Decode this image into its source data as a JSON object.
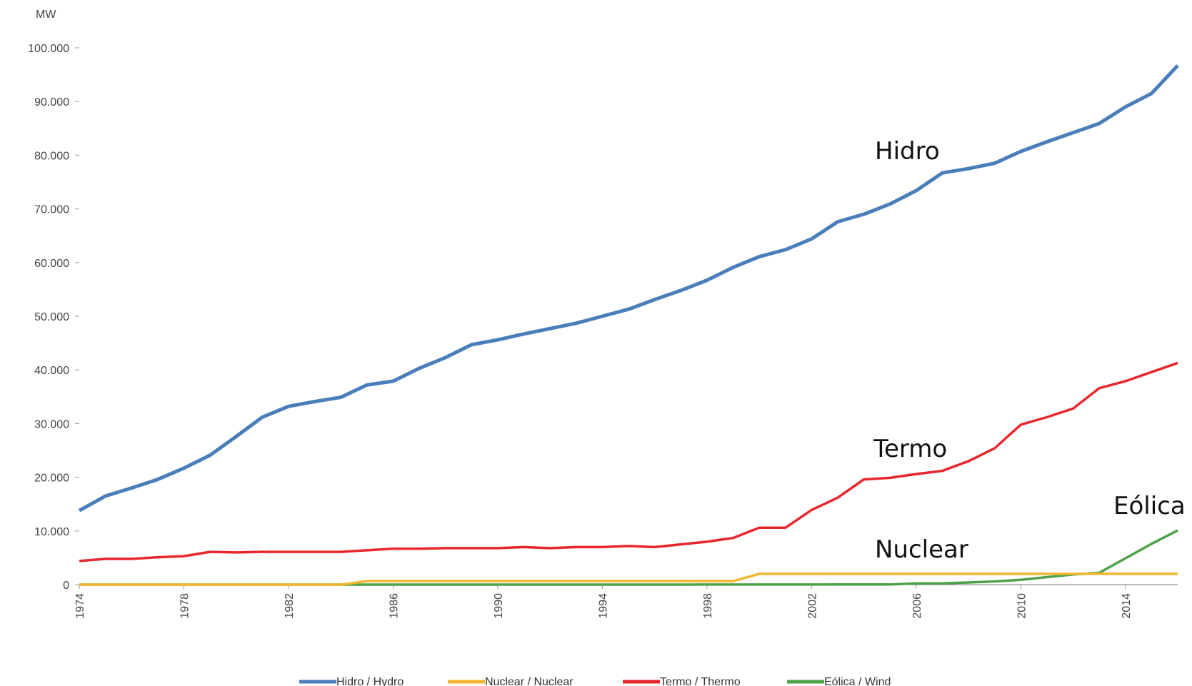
{
  "chart_data": {
    "type": "line",
    "y_label": "MW",
    "x": [
      1974,
      1975,
      1976,
      1977,
      1978,
      1979,
      1980,
      1981,
      1982,
      1983,
      1984,
      1985,
      1986,
      1987,
      1988,
      1989,
      1990,
      1991,
      1992,
      1993,
      1994,
      1995,
      1996,
      1997,
      1998,
      1999,
      2000,
      2001,
      2002,
      2003,
      2004,
      2005,
      2006,
      2007,
      2008,
      2009,
      2010,
      2011,
      2012,
      2013,
      2014,
      2015,
      2016
    ],
    "xlim": [
      1974,
      2016
    ],
    "xticks": [
      1974,
      1978,
      1982,
      1986,
      1990,
      1994,
      1998,
      2002,
      2006,
      2010,
      2014
    ],
    "ylim": [
      0,
      100000
    ],
    "yticks": [
      0,
      {
        "value": 10000,
        "label": "10.000"
      },
      {
        "value": 20000,
        "label": "20.000"
      },
      {
        "value": 30000,
        "label": "30.000"
      },
      {
        "value": 40000,
        "label": "40.000"
      },
      {
        "value": 50000,
        "label": "50.000"
      },
      {
        "value": 60000,
        "label": "60.000"
      },
      {
        "value": 70000,
        "label": "70.000"
      },
      {
        "value": 80000,
        "label": "80.000"
      },
      {
        "value": 90000,
        "label": "90.000"
      },
      {
        "value": 100000,
        "label": "100.000"
      }
    ],
    "series": [
      {
        "name": "Hidro / Hydro",
        "color": "#4a7ebb",
        "values": [
          13800,
          16500,
          18000,
          19600,
          21700,
          24100,
          27600,
          31200,
          33200,
          34100,
          34900,
          37200,
          37900,
          40300,
          42300,
          44700,
          45600,
          46700,
          47700,
          48700,
          50000,
          51300,
          53100,
          54800,
          56700,
          59100,
          61100,
          62400,
          64400,
          67600,
          69000,
          70900,
          73400,
          76700,
          77500,
          78500,
          80700,
          82500,
          84200,
          85900,
          89000,
          91500,
          96700
        ]
      },
      {
        "name": "Nuclear / Nuclear",
        "color": "#f5b731",
        "values": [
          0,
          0,
          0,
          0,
          0,
          0,
          0,
          0,
          0,
          0,
          0,
          657,
          657,
          657,
          657,
          657,
          657,
          657,
          657,
          657,
          657,
          657,
          657,
          657,
          657,
          657,
          2007,
          2007,
          2007,
          2007,
          2007,
          2007,
          2007,
          2007,
          2007,
          2007,
          2007,
          2007,
          2007,
          2007,
          2007,
          2007,
          2007
        ]
      },
      {
        "name": "Termo / Thermo",
        "color": "#e8262e",
        "values": [
          4400,
          4800,
          4800,
          5100,
          5300,
          6100,
          6000,
          6100,
          6100,
          6100,
          6100,
          6400,
          6700,
          6700,
          6800,
          6800,
          6800,
          7000,
          6800,
          7000,
          7000,
          7200,
          7000,
          7500,
          8000,
          8700,
          10600,
          10600,
          13900,
          16200,
          19600,
          19900,
          20600,
          21200,
          23000,
          25400,
          29800,
          31200,
          32800,
          36600,
          37900,
          39600,
          41300
        ]
      },
      {
        "name": "Eólica / Wind",
        "color": "#4ea24a",
        "values": [
          0,
          0,
          0,
          0,
          0,
          0,
          0,
          0,
          0,
          0,
          0,
          0,
          0,
          0,
          0,
          0,
          0,
          0,
          0,
          0,
          0,
          0,
          0,
          0,
          20,
          20,
          20,
          20,
          20,
          30,
          30,
          30,
          240,
          250,
          400,
          600,
          900,
          1400,
          1900,
          2200,
          4900,
          7600,
          10100
        ]
      }
    ],
    "annotations": [
      "Hidro",
      "Termo",
      "Nuclear",
      "Eólica"
    ]
  }
}
